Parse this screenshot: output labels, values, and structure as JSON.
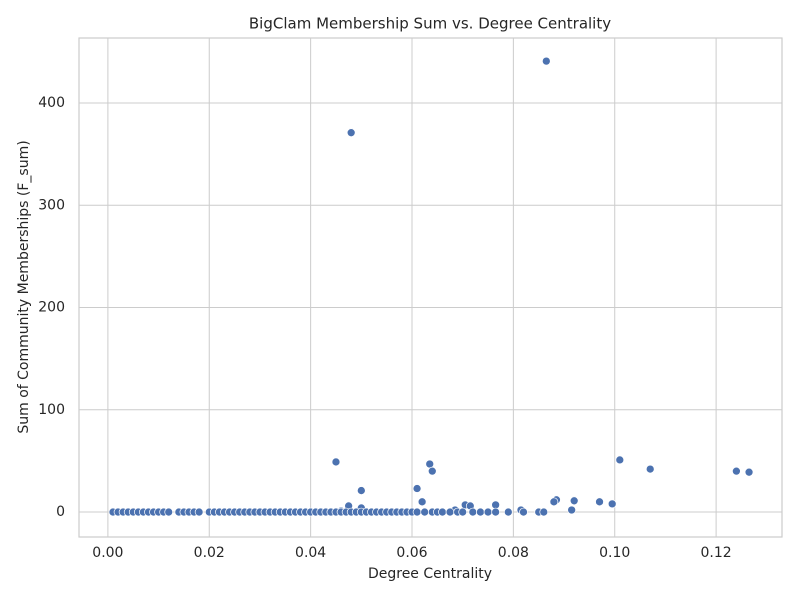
{
  "chart_data": {
    "type": "scatter",
    "title": "BigClam Membership Sum vs. Degree Centrality",
    "x_label": "Degree Centrality",
    "y_label": "Sum of Community Memberships (F_sum)",
    "color": "#4c72b0",
    "grid": true,
    "xlim": [
      -0.0057,
      0.133
    ],
    "ylim": [
      -24.4,
      463.6
    ],
    "xticks": [
      {
        "value": 0,
        "label": "0.00"
      },
      {
        "value": 0.02,
        "label": "0.02"
      },
      {
        "value": 0.04,
        "label": "0.04"
      },
      {
        "value": 0.06,
        "label": "0.06"
      },
      {
        "value": 0.08,
        "label": "0.08"
      },
      {
        "value": 0.1,
        "label": "0.10"
      },
      {
        "value": 0.12,
        "label": "0.12"
      }
    ],
    "yticks": [
      0,
      100,
      200,
      300,
      400
    ],
    "x": [
      0.0865,
      0.048,
      0.045,
      0.0635,
      0.064,
      0.05,
      0.061,
      0.062,
      0.101,
      0.107,
      0.124,
      0.1265,
      0.0885,
      0.092,
      0.097,
      0.0995,
      0.088,
      0.0765,
      0.0705,
      0.0715,
      0.0475,
      0.05,
      0.0685,
      0.0815,
      0.0915,
      0.046,
      0.001,
      0.002,
      0.003,
      0.004,
      0.005,
      0.006,
      0.007,
      0.008,
      0.009,
      0.01,
      0.011,
      0.012,
      0.014,
      0.015,
      0.016,
      0.017,
      0.018,
      0.02,
      0.021,
      0.022,
      0.023,
      0.024,
      0.025,
      0.026,
      0.027,
      0.028,
      0.029,
      0.03,
      0.031,
      0.032,
      0.033,
      0.034,
      0.035,
      0.036,
      0.037,
      0.038,
      0.039,
      0.04,
      0.041,
      0.042,
      0.043,
      0.044,
      0.045,
      0.046,
      0.047,
      0.048,
      0.049,
      0.05,
      0.051,
      0.052,
      0.053,
      0.054,
      0.055,
      0.056,
      0.057,
      0.058,
      0.059,
      0.06,
      0.061,
      0.0625,
      0.064,
      0.065,
      0.066,
      0.0675,
      0.069,
      0.07,
      0.072,
      0.0735,
      0.075,
      0.0765,
      0.079,
      0.082,
      0.085,
      0.086
    ],
    "y": [
      441,
      371,
      49,
      47,
      40,
      21,
      23,
      10,
      51,
      42,
      40,
      39,
      12,
      11,
      10,
      8,
      10,
      7,
      7,
      6,
      6,
      4,
      2,
      2,
      2,
      1,
      0,
      0,
      0,
      0,
      0,
      0,
      0,
      0,
      0,
      0,
      0,
      0,
      0,
      0,
      0,
      0,
      0,
      0,
      0,
      0,
      0,
      0,
      0,
      0,
      0,
      0,
      0,
      0,
      0,
      0,
      0,
      0,
      0,
      0,
      0,
      0,
      0,
      0,
      0,
      0,
      0,
      0,
      0,
      0,
      0,
      0,
      0,
      0,
      0,
      0,
      0,
      0,
      0,
      0,
      0,
      0,
      0,
      0,
      0,
      0,
      0,
      0,
      0,
      0,
      0,
      0,
      0,
      0,
      0,
      0,
      0,
      0,
      0,
      0
    ]
  }
}
